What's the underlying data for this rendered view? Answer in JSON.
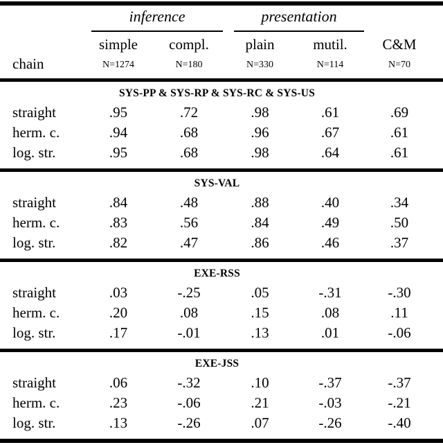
{
  "colors": {
    "background": "#ffffff",
    "text": "#000000",
    "rule": "#000000"
  },
  "chart_data": {
    "type": "table",
    "row_label_header": "chain",
    "column_groups": [
      {
        "label": "inference",
        "columns": [
          "simple",
          "compl."
        ]
      },
      {
        "label": "presentation",
        "columns": [
          "plain",
          "mutil."
        ]
      }
    ],
    "columns": [
      {
        "label": "simple",
        "n_label": "N=1274"
      },
      {
        "label": "compl.",
        "n_label": "N=180"
      },
      {
        "label": "plain",
        "n_label": "N=330"
      },
      {
        "label": "mutil.",
        "n_label": "N=114"
      },
      {
        "label": "C&M",
        "n_label": "N=70"
      }
    ],
    "sections": [
      {
        "header": "SYS-PP & SYS-RP & SYS-RC & SYS-US",
        "rows": [
          {
            "label": "straight",
            "values": [
              ".95",
              ".72",
              ".98",
              ".61",
              ".69"
            ]
          },
          {
            "label": "herm. c.",
            "values": [
              ".94",
              ".68",
              ".96",
              ".67",
              ".61"
            ]
          },
          {
            "label": "log. str.",
            "values": [
              ".95",
              ".68",
              ".98",
              ".64",
              ".61"
            ]
          }
        ]
      },
      {
        "header": "SYS-VAL",
        "rows": [
          {
            "label": "straight",
            "values": [
              ".84",
              ".48",
              ".88",
              ".40",
              ".34"
            ]
          },
          {
            "label": "herm. c.",
            "values": [
              ".83",
              ".56",
              ".84",
              ".49",
              ".50"
            ]
          },
          {
            "label": "log. str.",
            "values": [
              ".82",
              ".47",
              ".86",
              ".46",
              ".37"
            ]
          }
        ]
      },
      {
        "header": "EXE-RSS",
        "rows": [
          {
            "label": "straight",
            "values": [
              ".03",
              "-.25",
              ".05",
              "-.31",
              "-.30"
            ]
          },
          {
            "label": "herm. c.",
            "values": [
              ".20",
              ".08",
              ".15",
              ".08",
              ".11"
            ]
          },
          {
            "label": "log. str.",
            "values": [
              ".17",
              "-.01",
              ".13",
              ".01",
              "-.06"
            ]
          }
        ]
      },
      {
        "header": "EXE-JSS",
        "rows": [
          {
            "label": "straight",
            "values": [
              ".06",
              "-.32",
              ".10",
              "-.37",
              "-.37"
            ]
          },
          {
            "label": "herm. c.",
            "values": [
              ".23",
              "-.06",
              ".21",
              "-.03",
              "-.21"
            ]
          },
          {
            "label": "log. str.",
            "values": [
              ".13",
              "-.26",
              ".07",
              "-.26",
              "-.40"
            ]
          }
        ]
      }
    ]
  }
}
